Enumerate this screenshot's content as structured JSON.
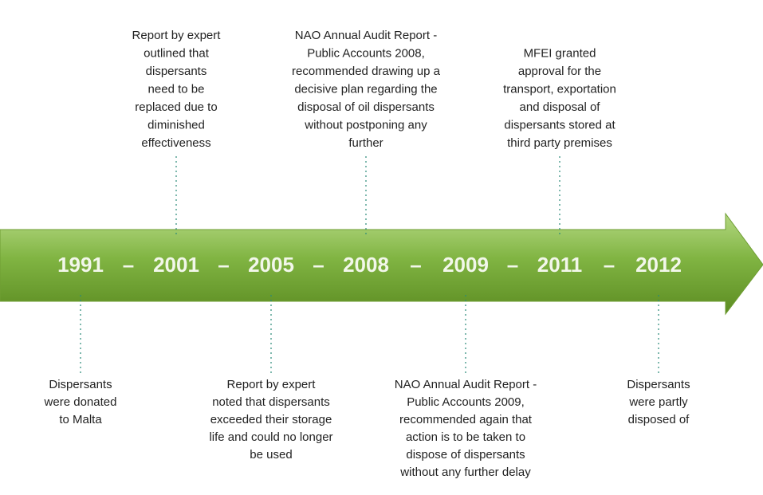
{
  "timeline": {
    "years": [
      "1991",
      "2001",
      "2005",
      "2008",
      "2009",
      "2011",
      "2012"
    ],
    "separator": "–"
  },
  "events": [
    {
      "position": "bottom",
      "lines": [
        "Dispersants",
        "were donated",
        "to Malta"
      ]
    },
    {
      "position": "top",
      "lines": [
        "Report by expert",
        "outlined that",
        "dispersants",
        "need to be",
        "replaced due to",
        "diminished",
        "effectiveness"
      ]
    },
    {
      "position": "bottom",
      "lines": [
        "Report by expert",
        "noted that dispersants",
        "exceeded their storage",
        "life and could no longer",
        "be used"
      ]
    },
    {
      "position": "top",
      "lines": [
        "NAO Annual Audit Report -",
        "Public Accounts 2008,",
        "recommended drawing up a",
        "decisive plan regarding the",
        "disposal of oil dispersants",
        "without postponing any",
        "further"
      ]
    },
    {
      "position": "bottom",
      "lines": [
        "NAO Annual Audit Report -",
        "Public Accounts 2009,",
        "recommended again that",
        "action is to be taken to",
        "dispose of dispersants",
        "without any further delay"
      ]
    },
    {
      "position": "top",
      "lines": [
        "MFEI granted",
        "approval for the",
        "transport, exportation",
        "and disposal of",
        "dispersants stored at",
        "third party premises"
      ]
    },
    {
      "position": "bottom",
      "lines": [
        "Dispersants",
        "were partly",
        "disposed of"
      ]
    }
  ]
}
